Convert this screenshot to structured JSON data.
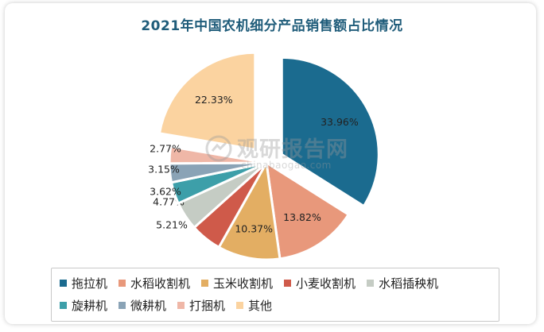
{
  "chart_data": {
    "type": "pie",
    "title": "2021年中国农机细分产品销售额占比情况",
    "categories": [
      "拖拉机",
      "水稻收割机",
      "玉米收割机",
      "小麦收割机",
      "水稻插秧机",
      "旋耕机",
      "微耕机",
      "打捆机",
      "其他"
    ],
    "values": [
      33.96,
      13.82,
      10.37,
      5.21,
      4.77,
      3.62,
      3.15,
      2.77,
      22.33
    ],
    "labels": [
      "33.96%",
      "13.82%",
      "10.37%",
      "5.21%",
      "4.77%",
      "3.62%",
      "3.15%",
      "2.77%",
      "22.33%"
    ],
    "colors": [
      "#1b6b8f",
      "#e8987b",
      "#e3ae63",
      "#cf5a4a",
      "#c5ccc4",
      "#3d9fa9",
      "#8aa3b6",
      "#efb7a7",
      "#fbd3a0"
    ],
    "exploded": [
      "拖拉机",
      "其他"
    ],
    "legend_position": "bottom"
  },
  "watermark": {
    "text": "观研报告网",
    "subtext": "chinabaogao.com"
  }
}
